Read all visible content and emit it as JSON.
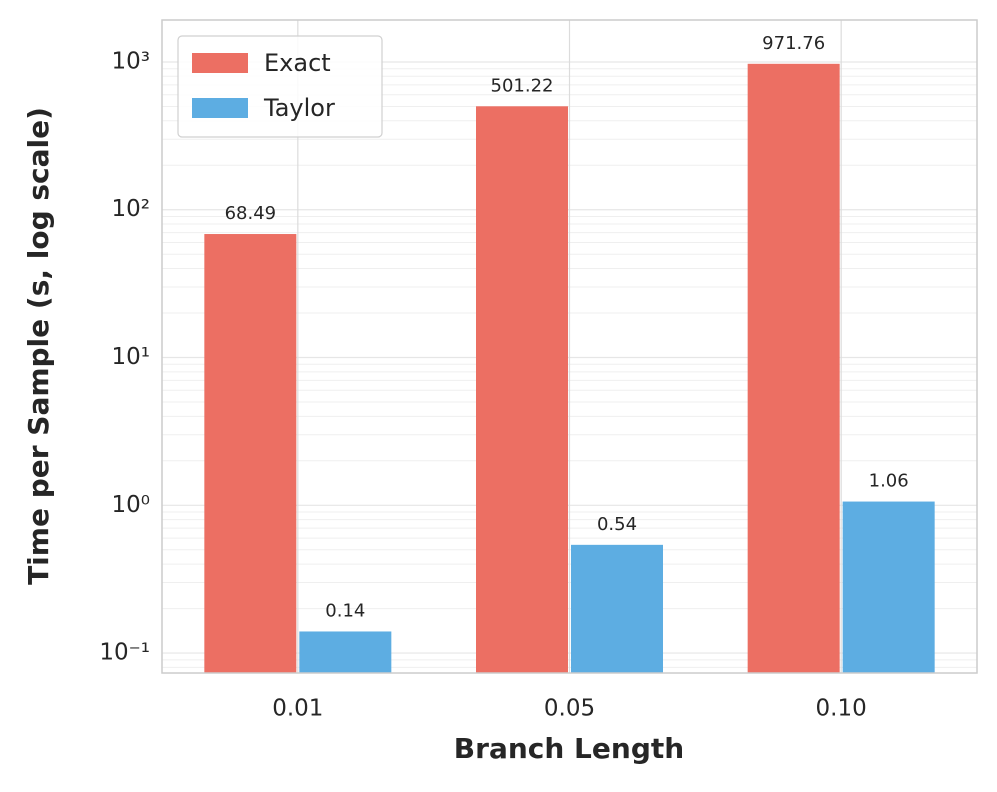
{
  "chart_data": {
    "type": "bar",
    "xlabel": "Branch Length",
    "ylabel": "Time per Sample (s, log scale)",
    "categories": [
      "0.01",
      "0.05",
      "0.10"
    ],
    "series": [
      {
        "name": "Exact",
        "color": "#ec6f63",
        "values": [
          68.49,
          501.22,
          971.76
        ]
      },
      {
        "name": "Taylor",
        "color": "#5dade2",
        "values": [
          0.14,
          0.54,
          1.06
        ]
      }
    ],
    "ylim": [
      0.0733,
      1923
    ],
    "yscale": "log",
    "yticks": [
      {
        "value": 0.1,
        "label": "10⁻¹"
      },
      {
        "value": 1,
        "label": "10⁰"
      },
      {
        "value": 10,
        "label": "10¹"
      },
      {
        "value": 100,
        "label": "10²"
      },
      {
        "value": 1000,
        "label": "10³"
      }
    ],
    "grid": true,
    "legend": "upper left"
  }
}
